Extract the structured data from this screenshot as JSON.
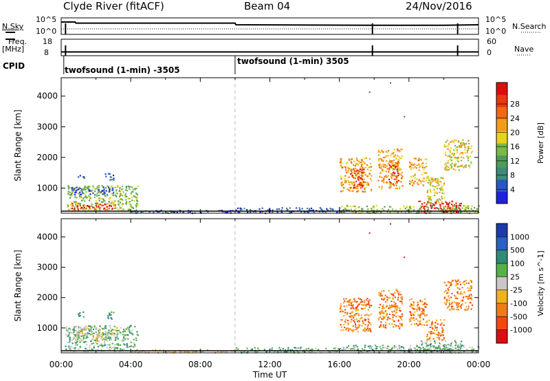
{
  "header": {
    "station": "Clyde River (fitACF)",
    "beam": "Beam 04",
    "date": "24/Nov/2016"
  },
  "summary": {
    "nsky_label": "N.Sky",
    "nsky_ticks": [
      "10^5",
      "10^0"
    ],
    "nsearch_label": "N.Search",
    "nsearch_ticks": [
      "10^5",
      "10^0"
    ],
    "freq_label": "Freq.",
    "freq_unit": "[MHz]",
    "freq_ticks": [
      "18",
      "8"
    ],
    "nave_label": "Nave",
    "nave_ticks": [
      "60",
      "0"
    ],
    "cpid_label": "CPID",
    "cpid_segments": [
      {
        "start_hour": 0,
        "text": "twofsound (1-min) -3505"
      },
      {
        "start_hour": 10,
        "text": "twofsound (1-min) 3505"
      }
    ]
  },
  "axes": {
    "time_ticks": [
      "00:00",
      "04:00",
      "08:00",
      "12:00",
      "16:00",
      "20:00",
      "00:00"
    ],
    "time_label": "Time UT",
    "range_ticks": [
      "1000",
      "2000",
      "3000",
      "4000"
    ],
    "range_label": "Slant Range [km]"
  },
  "colorbars": {
    "power": {
      "label": "Power [dB]",
      "ticks": [
        "4",
        "8",
        "12",
        "16",
        "20",
        "24",
        "28"
      ],
      "colors": [
        "#1e22d8",
        "#2a58c0",
        "#3f8a78",
        "#4f9a58",
        "#7ab848",
        "#e7d223",
        "#f39a1d",
        "#f06a13",
        "#e63a10",
        "#d90e10"
      ]
    },
    "velocity": {
      "label": "Velocity [m s^-1]",
      "ticks": [
        "1000",
        "500",
        "100",
        "25",
        "-25",
        "-100",
        "-500",
        "-1000"
      ],
      "colors": [
        "#1e3aa8",
        "#2a60c0",
        "#2f8a78",
        "#57b048",
        "#c7c7c7",
        "#f0b020",
        "#f07b1a",
        "#f04a12",
        "#d90e10"
      ]
    }
  },
  "chart_data": [
    {
      "type": "line",
      "title": "N.Sky / N.Search",
      "x": [
        0,
        0.8,
        0.85,
        10,
        10.05,
        18,
        22,
        24
      ],
      "series": [
        {
          "name": "N.Sky",
          "values": [
            0.8,
            0.8,
            0.72,
            0.72,
            0.6,
            0.56,
            0.56,
            0.6
          ]
        },
        {
          "name": "N.Search",
          "values": [
            0.3,
            0.3,
            0.3,
            0.3,
            0.3,
            0.3,
            0.3,
            0.3
          ]
        }
      ]
    },
    {
      "type": "line",
      "title": "Freq. / Nave",
      "x": [
        0,
        24
      ],
      "series": [
        {
          "name": "Freq.",
          "values": [
            10.3,
            10.3
          ]
        },
        {
          "name": "Nave",
          "values": [
            15,
            15
          ]
        }
      ]
    },
    {
      "type": "heatmap",
      "title": "Power [dB]",
      "x_range": [
        0,
        24
      ],
      "y_range": [
        180,
        4600
      ],
      "regions": [
        {
          "t0": 0.3,
          "t1": 4.4,
          "r0": 250,
          "r1": 1100,
          "level": 4
        },
        {
          "t0": 0.5,
          "t1": 3.2,
          "r0": 330,
          "r1": 520,
          "level": 8
        },
        {
          "t0": 0.5,
          "t1": 3.0,
          "r0": 800,
          "r1": 1050,
          "level": 1
        },
        {
          "t0": 0.9,
          "t1": 1.3,
          "r0": 1350,
          "r1": 1500,
          "level": 1
        },
        {
          "t0": 2.5,
          "t1": 3.0,
          "r0": 1280,
          "r1": 1500,
          "level": 1
        },
        {
          "t0": 4.0,
          "t1": 10.0,
          "r0": 200,
          "r1": 300,
          "level": 1
        },
        {
          "t0": 10.0,
          "t1": 16.5,
          "r0": 200,
          "r1": 380,
          "level": 1
        },
        {
          "t0": 16.0,
          "t1": 17.8,
          "r0": 900,
          "r1": 2000,
          "level": 6
        },
        {
          "t0": 16.6,
          "t1": 17.4,
          "r0": 1000,
          "r1": 1700,
          "level": 8
        },
        {
          "t0": 18.2,
          "t1": 19.6,
          "r0": 1000,
          "r1": 2300,
          "level": 6
        },
        {
          "t0": 18.8,
          "t1": 19.4,
          "r0": 1100,
          "r1": 1900,
          "level": 8
        },
        {
          "t0": 20.0,
          "t1": 21.0,
          "r0": 1100,
          "r1": 2000,
          "level": 6
        },
        {
          "t0": 21.0,
          "t1": 22.0,
          "r0": 500,
          "r1": 1400,
          "level": 5
        },
        {
          "t0": 22.0,
          "t1": 23.6,
          "r0": 1600,
          "r1": 2600,
          "level": 5
        },
        {
          "t0": 20.5,
          "t1": 23.0,
          "r0": 200,
          "r1": 600,
          "level": 9
        },
        {
          "t0": 16.0,
          "t1": 24.0,
          "r0": 200,
          "r1": 450,
          "level": 4
        }
      ]
    },
    {
      "type": "heatmap",
      "title": "Velocity [m s^-1]",
      "x_range": [
        0,
        24
      ],
      "y_range": [
        180,
        4600
      ],
      "regions": [
        {
          "t0": 0.2,
          "t1": 4.4,
          "r0": 250,
          "r1": 1100,
          "level": 3
        },
        {
          "t0": 0.8,
          "t1": 3.2,
          "r0": 600,
          "r1": 1050,
          "level": 4
        },
        {
          "t0": 0.9,
          "t1": 1.3,
          "r0": 1350,
          "r1": 1550,
          "level": 2
        },
        {
          "t0": 2.5,
          "t1": 3.0,
          "r0": 1300,
          "r1": 1550,
          "level": 2
        },
        {
          "t0": 4.0,
          "t1": 10.0,
          "r0": 200,
          "r1": 300,
          "level": 5
        },
        {
          "t0": 10.0,
          "t1": 16.5,
          "r0": 200,
          "r1": 380,
          "level": 3
        },
        {
          "t0": 16.0,
          "t1": 17.8,
          "r0": 900,
          "r1": 2000,
          "level": 6
        },
        {
          "t0": 18.2,
          "t1": 19.6,
          "r0": 1000,
          "r1": 2300,
          "level": 6
        },
        {
          "t0": 20.0,
          "t1": 21.0,
          "r0": 1100,
          "r1": 2000,
          "level": 6
        },
        {
          "t0": 21.0,
          "t1": 22.0,
          "r0": 600,
          "r1": 1300,
          "level": 6
        },
        {
          "t0": 22.0,
          "t1": 23.6,
          "r0": 1600,
          "r1": 2600,
          "level": 6
        },
        {
          "t0": 20.5,
          "t1": 23.0,
          "r0": 200,
          "r1": 600,
          "level": 3
        },
        {
          "t0": 16.0,
          "t1": 24.0,
          "r0": 200,
          "r1": 450,
          "level": 3
        }
      ]
    }
  ]
}
